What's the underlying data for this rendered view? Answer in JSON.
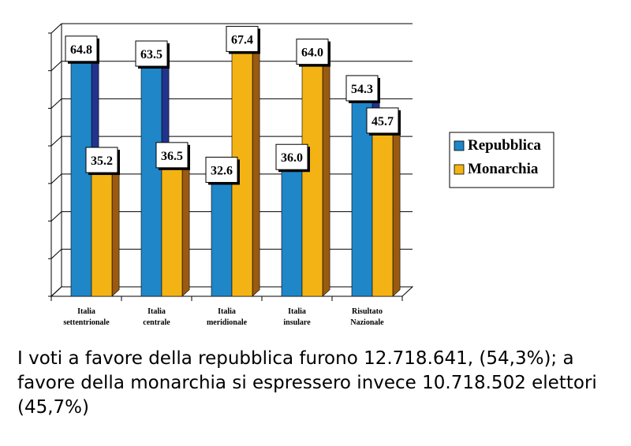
{
  "chart_data": {
    "type": "bar",
    "categories": [
      [
        "Italia",
        "settentrionale"
      ],
      [
        "Italia",
        "centrale"
      ],
      [
        "Italia",
        "meridionale"
      ],
      [
        "Italia",
        "insulare"
      ],
      [
        "Risultato",
        "Nazionale"
      ]
    ],
    "series": [
      {
        "name": "Repubblica",
        "values": [
          64.8,
          63.5,
          32.6,
          36.0,
          54.3
        ],
        "labels": [
          "64.8",
          "63.5",
          "32.6",
          "36.0",
          "54.3"
        ],
        "color": "#1f86c8",
        "side_color": "#22338f"
      },
      {
        "name": "Monarchia",
        "values": [
          35.2,
          36.5,
          67.4,
          64.0,
          45.7
        ],
        "labels": [
          "35.2",
          "36.5",
          "67.4",
          "64.0",
          "45.7"
        ],
        "color": "#f3b314",
        "side_color": "#9a5a10"
      }
    ],
    "ylim": [
      0,
      70
    ],
    "grid": true,
    "legend": "right",
    "three_d": true
  },
  "caption": "I voti a favore della repubblica furono 12.718.641, (54,3%); a favore della monarchia si espressero invece 10.718.502 elettori (45,7%)"
}
